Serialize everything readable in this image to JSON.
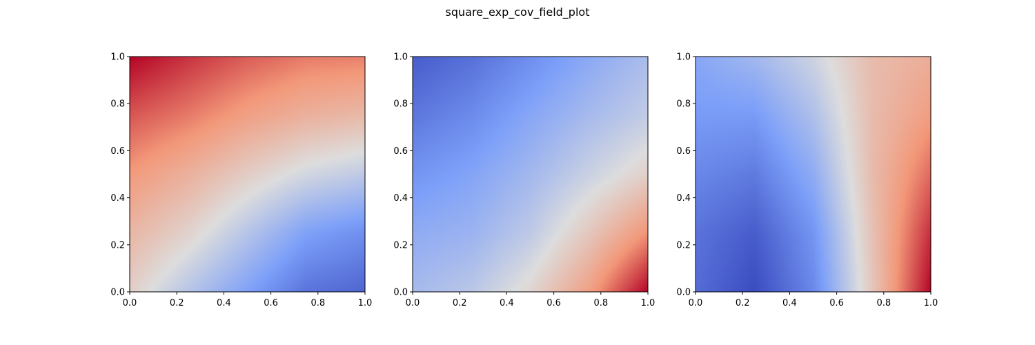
{
  "figure": {
    "title": "square_exp_cov_field_plot"
  },
  "chart_data": [
    {
      "type": "heatmap",
      "colormap": "coolwarm",
      "xlim": [
        0,
        1
      ],
      "ylim": [
        0,
        1
      ],
      "xticks": [
        "0.0",
        "0.2",
        "0.4",
        "0.6",
        "0.8",
        "1.0"
      ],
      "yticks": [
        "0.0",
        "0.2",
        "0.4",
        "0.6",
        "0.8",
        "1.0"
      ],
      "grid": false,
      "field": {
        "x": [
          0.0,
          0.25,
          0.5,
          0.75,
          1.0
        ],
        "y": [
          0.0,
          0.25,
          0.5,
          0.75,
          1.0
        ],
        "z_rows_from_bottom": [
          [
            0.55,
            0.4,
            0.26,
            0.12,
            0.08
          ],
          [
            0.64,
            0.54,
            0.4,
            0.26,
            0.2
          ],
          [
            0.74,
            0.66,
            0.56,
            0.47,
            0.42
          ],
          [
            0.86,
            0.8,
            0.72,
            0.66,
            0.63
          ],
          [
            1.0,
            0.92,
            0.85,
            0.8,
            0.79
          ]
        ],
        "z_range": [
          0,
          1
        ]
      }
    },
    {
      "type": "heatmap",
      "colormap": "coolwarm",
      "xlim": [
        0,
        1
      ],
      "ylim": [
        0,
        1
      ],
      "xticks": [
        "0.0",
        "0.2",
        "0.4",
        "0.6",
        "0.8",
        "1.0"
      ],
      "yticks": [
        "0.0",
        "0.2",
        "0.4",
        "0.6",
        "0.8",
        "1.0"
      ],
      "grid": false,
      "field": {
        "x": [
          0.0,
          0.25,
          0.5,
          0.75,
          1.0
        ],
        "y": [
          0.0,
          0.25,
          0.5,
          0.75,
          1.0
        ],
        "z_rows_from_bottom": [
          [
            0.36,
            0.41,
            0.53,
            0.72,
            1.0
          ],
          [
            0.3,
            0.33,
            0.42,
            0.58,
            0.76
          ],
          [
            0.22,
            0.27,
            0.35,
            0.45,
            0.55
          ],
          [
            0.13,
            0.19,
            0.28,
            0.36,
            0.43
          ],
          [
            0.05,
            0.11,
            0.2,
            0.29,
            0.37
          ]
        ],
        "z_range": [
          0,
          1
        ]
      }
    },
    {
      "type": "heatmap",
      "colormap": "coolwarm",
      "xlim": [
        0,
        1
      ],
      "ylim": [
        0,
        1
      ],
      "xticks": [
        "0.0",
        "0.2",
        "0.4",
        "0.6",
        "0.8",
        "1.0"
      ],
      "yticks": [
        "0.0",
        "0.2",
        "0.4",
        "0.6",
        "0.8",
        "1.0"
      ],
      "grid": false,
      "field": {
        "x": [
          0.0,
          0.25,
          0.5,
          0.75,
          1.0
        ],
        "y": [
          0.0,
          0.25,
          0.5,
          0.75,
          1.0
        ],
        "z_rows_from_bottom": [
          [
            0.1,
            0.0,
            0.18,
            0.58,
            1.0
          ],
          [
            0.12,
            0.05,
            0.22,
            0.6,
            0.93
          ],
          [
            0.18,
            0.14,
            0.3,
            0.62,
            0.83
          ],
          [
            0.24,
            0.24,
            0.38,
            0.62,
            0.73
          ],
          [
            0.28,
            0.35,
            0.46,
            0.62,
            0.67
          ]
        ],
        "z_range": [
          0,
          1
        ]
      }
    }
  ]
}
